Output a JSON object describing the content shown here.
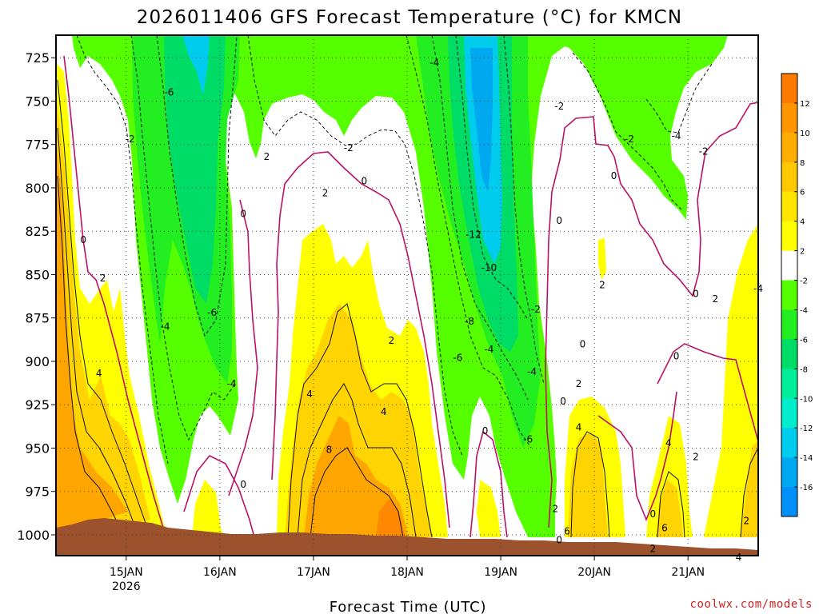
{
  "chart_data": {
    "type": "heatmap",
    "title": "2026011406 GFS Forecast Temperature (°C) for KMCN",
    "xlabel": "Forecast Time (UTC)",
    "ylabel": "",
    "credit": "coolwx.com/models",
    "y_ticks": [
      "725",
      "750",
      "775",
      "800",
      "825",
      "850",
      "875",
      "900",
      "925",
      "950",
      "975",
      "1000"
    ],
    "y_values": [
      725,
      750,
      775,
      800,
      825,
      850,
      875,
      900,
      925,
      950,
      975,
      1000
    ],
    "ylim": [
      712,
      1012
    ],
    "x_ticks": [
      {
        "label": "15JAN",
        "sub": "2026",
        "hour": 18
      },
      {
        "label": "16JAN",
        "sub": "",
        "hour": 42
      },
      {
        "label": "17JAN",
        "sub": "",
        "hour": 66
      },
      {
        "label": "18JAN",
        "sub": "",
        "hour": 90
      },
      {
        "label": "19JAN",
        "sub": "",
        "hour": 114
      },
      {
        "label": "20JAN",
        "sub": "",
        "hour": 138
      },
      {
        "label": "21JAN",
        "sub": "",
        "hour": 162
      }
    ],
    "xlim": [
      0,
      180
    ],
    "colorbar": {
      "labels": [
        "12",
        "10",
        "8",
        "6",
        "4",
        "2",
        "-2",
        "-4",
        "-6",
        "-8",
        "-10",
        "-12",
        "-14",
        "-16"
      ],
      "colors": [
        "#ff7a00",
        "#ff9600",
        "#ffad00",
        "#ffc800",
        "#ffe400",
        "#ffff00",
        "#ffffff",
        "#55ff00",
        "#22ee22",
        "#00dd66",
        "#00ee99",
        "#00eecc",
        "#00ccee",
        "#00a8f0",
        "#0090f8"
      ]
    },
    "contour_labels": [
      {
        "text": "-4",
        "hour": 97,
        "p": 728
      },
      {
        "text": "-6",
        "hour": 29,
        "p": 745
      },
      {
        "text": "-2",
        "hour": 19,
        "p": 772
      },
      {
        "text": "-2",
        "hour": 75,
        "p": 777
      },
      {
        "text": "2",
        "hour": 54,
        "p": 782
      },
      {
        "text": "0",
        "hour": 79,
        "p": 796
      },
      {
        "text": "2",
        "hour": 69,
        "p": 803
      },
      {
        "text": "0",
        "hour": 48,
        "p": 815
      },
      {
        "text": "0",
        "hour": 7,
        "p": 830
      },
      {
        "text": "2",
        "hour": 12,
        "p": 852
      },
      {
        "text": "-12",
        "hour": 107,
        "p": 827
      },
      {
        "text": "-10",
        "hour": 111,
        "p": 846
      },
      {
        "text": "-2",
        "hour": 129,
        "p": 753
      },
      {
        "text": "-2",
        "hour": 147,
        "p": 772
      },
      {
        "text": "-4",
        "hour": 159,
        "p": 770
      },
      {
        "text": "0",
        "hour": 143,
        "p": 793
      },
      {
        "text": "0",
        "hour": 129,
        "p": 819
      },
      {
        "text": "-2",
        "hour": 166,
        "p": 779
      },
      {
        "text": "2",
        "hour": 140,
        "p": 856
      },
      {
        "text": "0",
        "hour": 164,
        "p": 861
      },
      {
        "text": "-4",
        "hour": 180,
        "p": 858
      },
      {
        "text": "2",
        "hour": 169,
        "p": 864
      },
      {
        "text": "-2",
        "hour": 123,
        "p": 870
      },
      {
        "text": "-8",
        "hour": 106,
        "p": 877
      },
      {
        "text": "-6",
        "hour": 40,
        "p": 872
      },
      {
        "text": "-4",
        "hour": 28,
        "p": 880
      },
      {
        "text": "2",
        "hour": 86,
        "p": 888
      },
      {
        "text": "0",
        "hour": 135,
        "p": 890
      },
      {
        "text": "-6",
        "hour": 103,
        "p": 898
      },
      {
        "text": "-4",
        "hour": 111,
        "p": 893
      },
      {
        "text": "0",
        "hour": 159,
        "p": 897
      },
      {
        "text": "-4",
        "hour": 122,
        "p": 906
      },
      {
        "text": "4",
        "hour": 11,
        "p": 907
      },
      {
        "text": "-4",
        "hour": 45,
        "p": 913
      },
      {
        "text": "2",
        "hour": 134,
        "p": 913
      },
      {
        "text": "4",
        "hour": 65,
        "p": 919
      },
      {
        "text": "0",
        "hour": 130,
        "p": 923
      },
      {
        "text": "4",
        "hour": 84,
        "p": 929
      },
      {
        "text": "4",
        "hour": 134,
        "p": 938
      },
      {
        "text": "0",
        "hour": 110,
        "p": 940
      },
      {
        "text": "-6",
        "hour": 121,
        "p": 945
      },
      {
        "text": "8",
        "hour": 70,
        "p": 951
      },
      {
        "text": "4",
        "hour": 157,
        "p": 947
      },
      {
        "text": "2",
        "hour": 164,
        "p": 955
      },
      {
        "text": "0",
        "hour": 48,
        "p": 971
      },
      {
        "text": "2",
        "hour": 128,
        "p": 985
      },
      {
        "text": "0",
        "hour": 153,
        "p": 988
      },
      {
        "text": "2",
        "hour": 177,
        "p": 992
      },
      {
        "text": "6",
        "hour": 131,
        "p": 998
      },
      {
        "text": "6",
        "hour": 156,
        "p": 996
      },
      {
        "text": "0",
        "hour": 129,
        "p": 1003
      },
      {
        "text": "2",
        "hour": 153,
        "p": 1008
      },
      {
        "text": "4",
        "hour": 175,
        "p": 1013
      }
    ]
  }
}
